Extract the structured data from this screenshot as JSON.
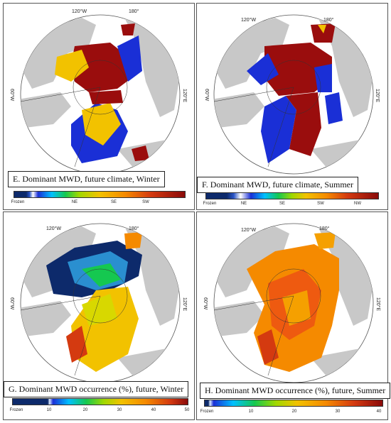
{
  "panels": {
    "E": {
      "caption": "E. Dominant MWD, future climate, Winter",
      "ticks": [
        "Frozen",
        "NE",
        "SE",
        "SW"
      ],
      "graticule": {
        "top_left": "120°W",
        "top_right": "180°",
        "left": "60°W",
        "right": "120°E"
      }
    },
    "F": {
      "caption": "F. Dominant MWD, future climate, Summer",
      "ticks": [
        "Frozen",
        "NE",
        "SE",
        "SW",
        "NW"
      ],
      "graticule": {
        "top_left": "120°W",
        "top_right": "180°",
        "left": "60°W",
        "right": "120°E"
      }
    },
    "G": {
      "caption": "G. Dominant MWD occurrence (%), future, Winter",
      "ticks": [
        "Frozen",
        "10",
        "20",
        "30",
        "40",
        "50"
      ],
      "graticule": {
        "top_left": "120°W",
        "top_right": "180°",
        "left": "60°W",
        "right": "120°E"
      }
    },
    "H": {
      "caption": "H. Dominant MWD occurrence (%), future, Summer",
      "ticks": [
        "Frozen",
        "10",
        "20",
        "30",
        "40"
      ],
      "graticule": {
        "top_left": "120°W",
        "top_right": "180°",
        "left": "60°W",
        "right": "120°E"
      }
    }
  },
  "colors": {
    "land": "#c8c8c8",
    "ocean": "#ffffff",
    "frozen": "#0d2a6b",
    "direction_blue": "#1a2fd6",
    "direction_yellow": "#f2c200",
    "direction_red": "#9a0d0d"
  }
}
